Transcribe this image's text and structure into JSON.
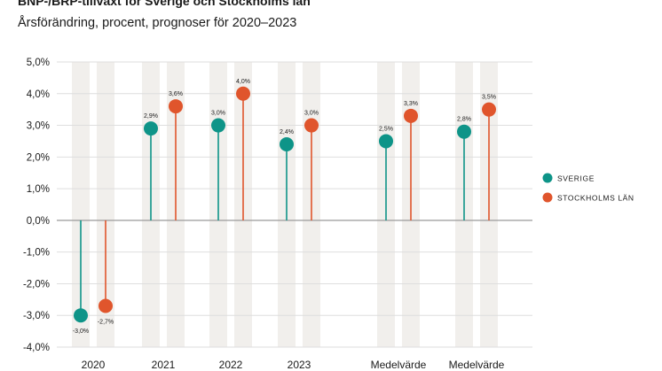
{
  "chart_data": {
    "type": "lollipop",
    "title": "BNP-/BRP-tillväxt för Sverige och Stockholms län",
    "subtitle": "Årsförändring, procent, prognoser för 2020–2023",
    "categories": [
      "2020",
      "2021",
      "2022",
      "2023",
      "Medelvärde",
      "Medelvärde"
    ],
    "ylim": [
      -4.0,
      5.0
    ],
    "y_ticks": [
      "5,0%",
      "4,0%",
      "3,0%",
      "2,0%",
      "1,0%",
      "0,0%",
      "-1,0%",
      "-2,0%",
      "-3,0%",
      "-4,0%"
    ],
    "series": [
      {
        "name": "SVERIGE",
        "color": "#0e9488",
        "values": [
          -3.0,
          2.9,
          3.0,
          2.4,
          2.5,
          2.8
        ],
        "labels": [
          "-3,0%",
          "2,9%",
          "3,0%",
          "2,4%",
          "2,5%",
          "2,8%"
        ]
      },
      {
        "name": "STOCKHOLMS LÄN",
        "color": "#e0552c",
        "values": [
          -2.7,
          3.6,
          4.0,
          3.0,
          3.3,
          3.5
        ],
        "labels": [
          "-2,7%",
          "3,6%",
          "4,0%",
          "3,0%",
          "3,3%",
          "3,5%"
        ]
      }
    ],
    "legend_position": "right"
  }
}
